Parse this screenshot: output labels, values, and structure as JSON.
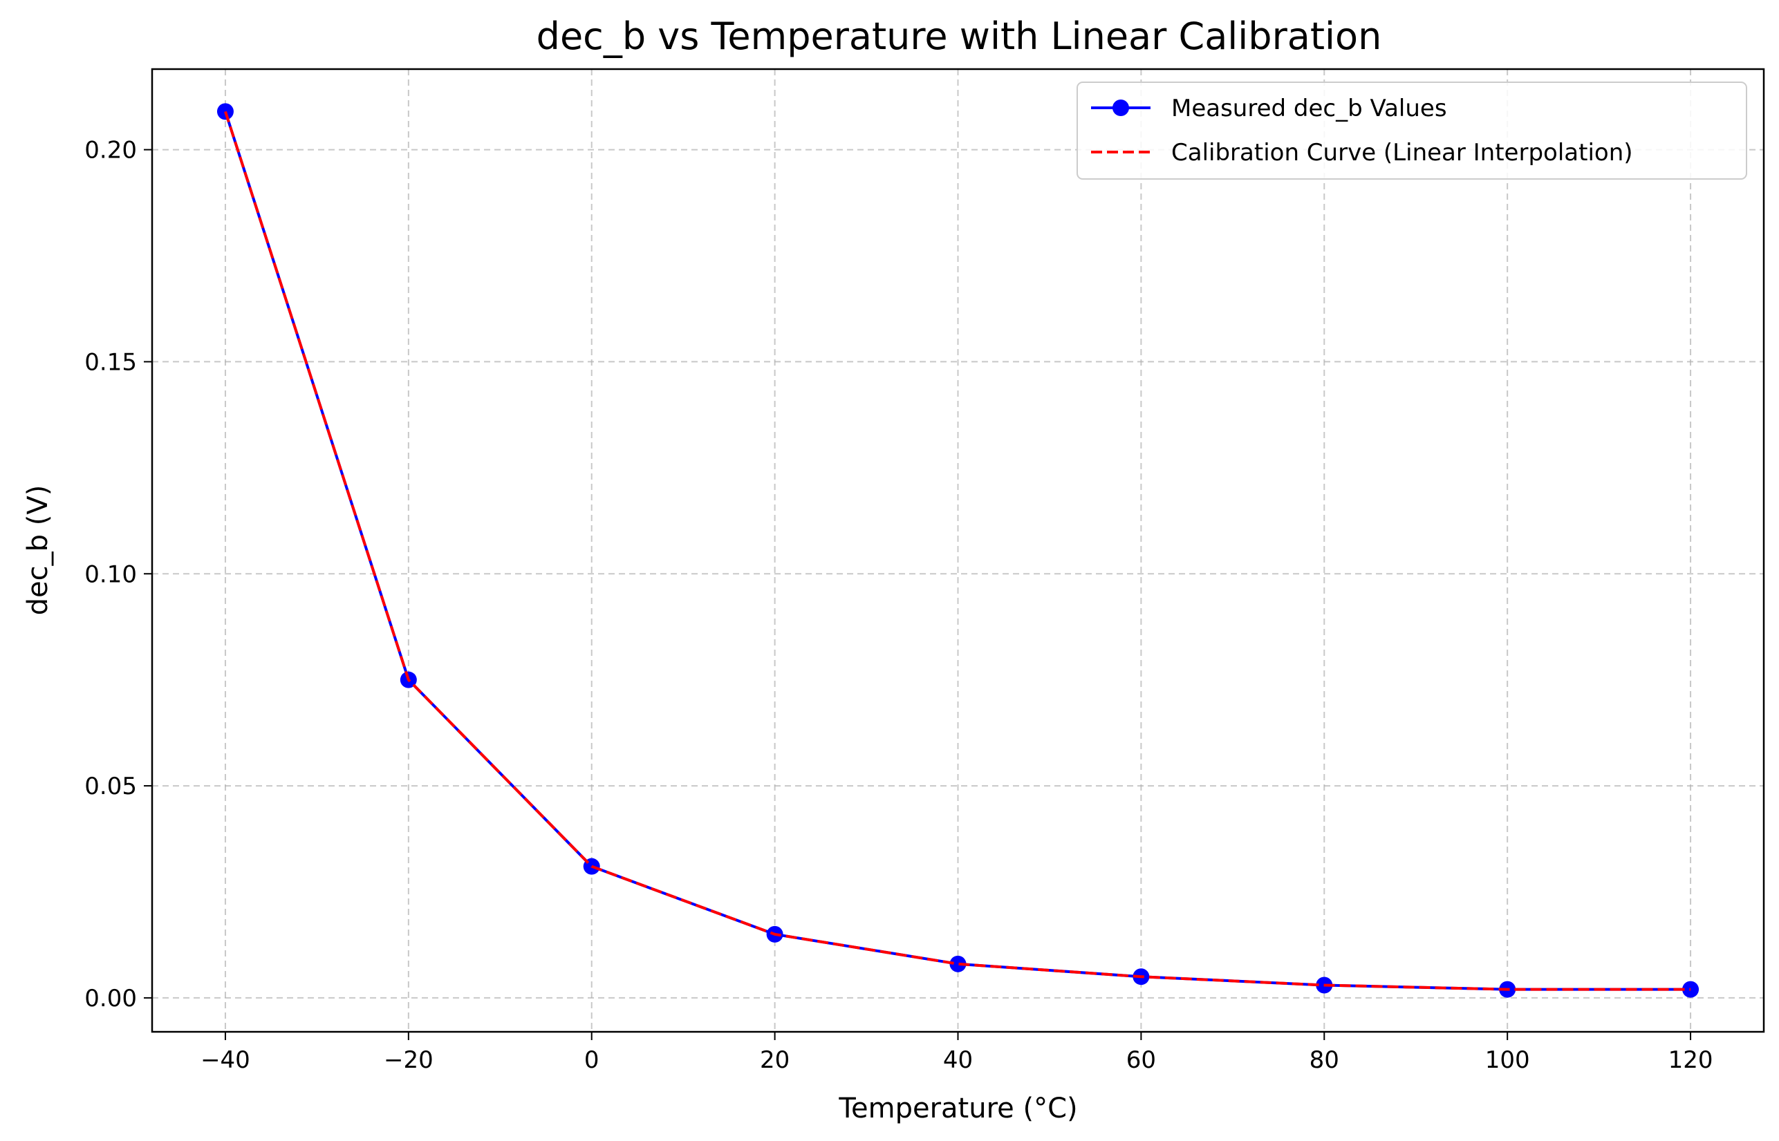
{
  "chart_data": {
    "type": "line",
    "title": "dec_b vs Temperature with Linear Calibration",
    "xlabel": "Temperature (°C)",
    "ylabel": "dec_b (V)",
    "xlim": [
      -48,
      128
    ],
    "ylim": [
      -0.008,
      0.219
    ],
    "x_ticks": [
      -40,
      -20,
      0,
      20,
      40,
      60,
      80,
      100,
      120
    ],
    "x_tick_labels": [
      "−40",
      "−20",
      "0",
      "20",
      "40",
      "60",
      "80",
      "100",
      "120"
    ],
    "y_ticks": [
      0.0,
      0.05,
      0.1,
      0.15,
      0.2
    ],
    "y_tick_labels": [
      "0.00",
      "0.05",
      "0.10",
      "0.15",
      "0.20"
    ],
    "grid": true,
    "grid_style": "dashed",
    "legend_position": "top-right",
    "series": [
      {
        "name": "Measured dec_b Values",
        "style": "solid line with circle markers",
        "color": "#0000ff",
        "x": [
          -40,
          -20,
          0,
          20,
          40,
          60,
          80,
          100,
          120
        ],
        "y": [
          0.209,
          0.075,
          0.031,
          0.015,
          0.008,
          0.005,
          0.003,
          0.002,
          0.002
        ]
      },
      {
        "name": "Calibration Curve (Linear Interpolation)",
        "style": "dashed line",
        "color": "#ff0000",
        "x": [
          -40,
          -20,
          0,
          20,
          40,
          60,
          80,
          100,
          120
        ],
        "y": [
          0.209,
          0.075,
          0.031,
          0.015,
          0.008,
          0.005,
          0.003,
          0.002,
          0.002
        ]
      }
    ]
  }
}
